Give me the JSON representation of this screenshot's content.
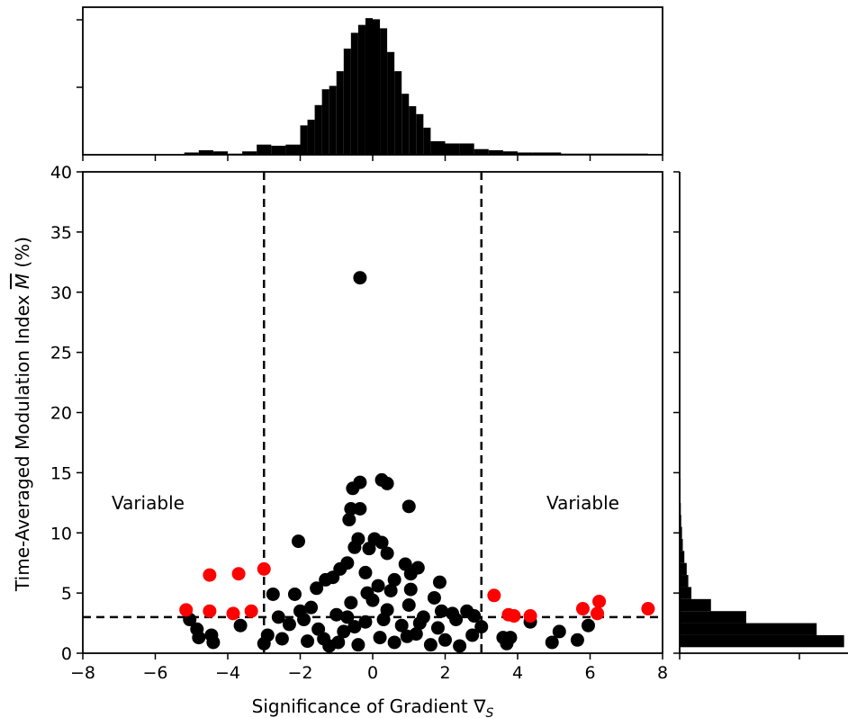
{
  "chart_data": {
    "type": "scatter",
    "title": "",
    "xlabel": "Significance of Gradient ∇",
    "xlabel_sub": "S",
    "ylabel": "Time-Averaged Modulation Index M (%)",
    "ylabel_parts": {
      "before": "Time-Averaged Modulation Index ",
      "symbol": "M",
      "after": " (%)"
    },
    "xlim": [
      -8,
      8
    ],
    "ylim": [
      0,
      40
    ],
    "x_ticks": [
      "−8",
      "−6",
      "−4",
      "−2",
      "0",
      "2",
      "4",
      "6",
      "8"
    ],
    "y_ticks": [
      "0",
      "5",
      "10",
      "15",
      "20",
      "25",
      "30",
      "35",
      "40"
    ],
    "grid": false,
    "thresholds": {
      "gradient_lower": -3,
      "gradient_upper": 3,
      "modulation": 3
    },
    "annotations": [
      {
        "text": "Variable",
        "x": -6.2,
        "y": 12.5
      },
      {
        "text": "Variable",
        "x": 5.8,
        "y": 12.5
      }
    ],
    "colors": {
      "non_variable": "#000000",
      "variable": "#ff0000"
    },
    "variable_points": [
      [
        -5.15,
        3.6
      ],
      [
        -4.5,
        3.5
      ],
      [
        -4.5,
        6.5
      ],
      [
        -3.85,
        3.3
      ],
      [
        -3.7,
        6.6
      ],
      [
        -3.35,
        3.5
      ],
      [
        -3.0,
        7.0
      ],
      [
        3.35,
        4.8
      ],
      [
        3.75,
        3.2
      ],
      [
        3.9,
        3.1
      ],
      [
        4.35,
        3.1
      ],
      [
        5.8,
        3.7
      ],
      [
        6.25,
        4.3
      ],
      [
        6.2,
        3.3
      ],
      [
        7.6,
        3.7
      ]
    ],
    "nonvariable_points": [
      [
        -0.35,
        31.2
      ],
      [
        0.25,
        14.4
      ],
      [
        0.4,
        14.1
      ],
      [
        -0.35,
        14.2
      ],
      [
        -0.55,
        13.7
      ],
      [
        -0.6,
        12.0
      ],
      [
        -0.35,
        12.0
      ],
      [
        -0.65,
        11.1
      ],
      [
        1.0,
        12.2
      ],
      [
        -2.05,
        9.3
      ],
      [
        -0.4,
        9.5
      ],
      [
        0.05,
        9.5
      ],
      [
        0.25,
        9.2
      ],
      [
        -0.1,
        8.7
      ],
      [
        0.4,
        8.3
      ],
      [
        -0.5,
        8.8
      ],
      [
        0.9,
        7.4
      ],
      [
        1.25,
        7.1
      ],
      [
        -0.7,
        7.5
      ],
      [
        1.05,
        6.6
      ],
      [
        -0.9,
        7.0
      ],
      [
        -1.3,
        6.1
      ],
      [
        1.85,
        5.9
      ],
      [
        1.7,
        4.6
      ],
      [
        -2.15,
        4.9
      ],
      [
        -2.75,
        4.9
      ],
      [
        -1.55,
        5.4
      ],
      [
        1.05,
        5.3
      ],
      [
        -1.1,
        6.3
      ],
      [
        0.6,
        6.1
      ],
      [
        -0.2,
        6.7
      ],
      [
        -5.05,
        2.8
      ],
      [
        -4.85,
        2.0
      ],
      [
        -4.8,
        1.3
      ],
      [
        -4.45,
        1.5
      ],
      [
        -4.4,
        0.9
      ],
      [
        -3.65,
        2.3
      ],
      [
        4.35,
        2.6
      ],
      [
        3.6,
        1.3
      ],
      [
        3.8,
        1.3
      ],
      [
        3.7,
        0.8
      ],
      [
        4.95,
        0.9
      ],
      [
        5.15,
        1.8
      ],
      [
        5.65,
        1.1
      ],
      [
        5.95,
        2.3
      ],
      [
        2.3,
        2.8
      ],
      [
        2.6,
        3.5
      ],
      [
        3.0,
        2.2
      ],
      [
        2.75,
        1.5
      ],
      [
        -2.9,
        1.5
      ],
      [
        -3.0,
        0.8
      ],
      [
        -2.5,
        1.2
      ],
      [
        -2.0,
        3.5
      ],
      [
        -1.8,
        1.0
      ],
      [
        -1.5,
        2.0
      ],
      [
        -1.2,
        0.6
      ],
      [
        -1.0,
        3.2
      ],
      [
        -0.8,
        1.8
      ],
      [
        -0.6,
        4.2
      ],
      [
        -0.4,
        0.7
      ],
      [
        -0.2,
        2.6
      ],
      [
        0.0,
        4.4
      ],
      [
        0.2,
        1.3
      ],
      [
        0.4,
        3.6
      ],
      [
        0.6,
        0.9
      ],
      [
        0.8,
        2.3
      ],
      [
        1.0,
        4.0
      ],
      [
        1.2,
        1.6
      ],
      [
        1.4,
        3.0
      ],
      [
        1.6,
        0.7
      ],
      [
        1.8,
        2.1
      ],
      [
        2.0,
        1.1
      ],
      [
        2.2,
        3.3
      ],
      [
        2.4,
        0.6
      ],
      [
        -2.3,
        2.4
      ],
      [
        -1.7,
        3.8
      ],
      [
        -1.35,
        1.2
      ],
      [
        -0.15,
        5.0
      ],
      [
        0.15,
        5.6
      ],
      [
        0.5,
        5.2
      ],
      [
        -0.7,
        3.0
      ],
      [
        0.95,
        1.4
      ],
      [
        1.3,
        2.5
      ],
      [
        -0.95,
        0.9
      ],
      [
        -2.6,
        3.0
      ],
      [
        2.8,
        3.1
      ],
      [
        -1.9,
        2.8
      ],
      [
        1.9,
        3.5
      ],
      [
        -0.5,
        2.2
      ],
      [
        0.3,
        2.8
      ]
    ],
    "top_histogram": {
      "bin_edges": [
        -5.2,
        -4.8,
        -4.4,
        -4.0,
        -3.6,
        -3.2,
        -2.8,
        -2.4,
        -2.0,
        -1.8,
        -1.6,
        -1.4,
        -1.2,
        -1.0,
        -0.8,
        -0.6,
        -0.4,
        -0.2,
        0.0,
        0.2,
        0.4,
        0.6,
        0.8,
        1.0,
        1.2,
        1.4,
        1.6,
        2.0,
        2.4,
        2.8,
        3.2,
        3.6,
        4.0,
        4.4,
        5.2,
        6.0,
        6.8,
        7.6
      ],
      "counts": [
        2,
        4,
        3,
        1,
        3,
        9,
        8,
        9,
        26,
        31,
        44,
        58,
        61,
        74,
        94,
        108,
        115,
        121,
        120,
        112,
        91,
        74,
        54,
        43,
        36,
        24,
        12,
        10,
        10,
        5,
        4,
        3,
        2,
        2,
        1,
        1,
        1
      ]
    },
    "right_histogram": {
      "bin_edges": [
        0.5,
        1.5,
        2.5,
        3.5,
        4.5,
        5.5,
        6.5,
        7.5,
        8.5,
        9.5,
        10.5,
        11.5,
        12.5,
        13.5,
        14.5
      ],
      "counts": [
        420,
        350,
        170,
        80,
        30,
        22,
        18,
        12,
        8,
        6,
        4,
        3,
        2,
        2
      ]
    }
  }
}
